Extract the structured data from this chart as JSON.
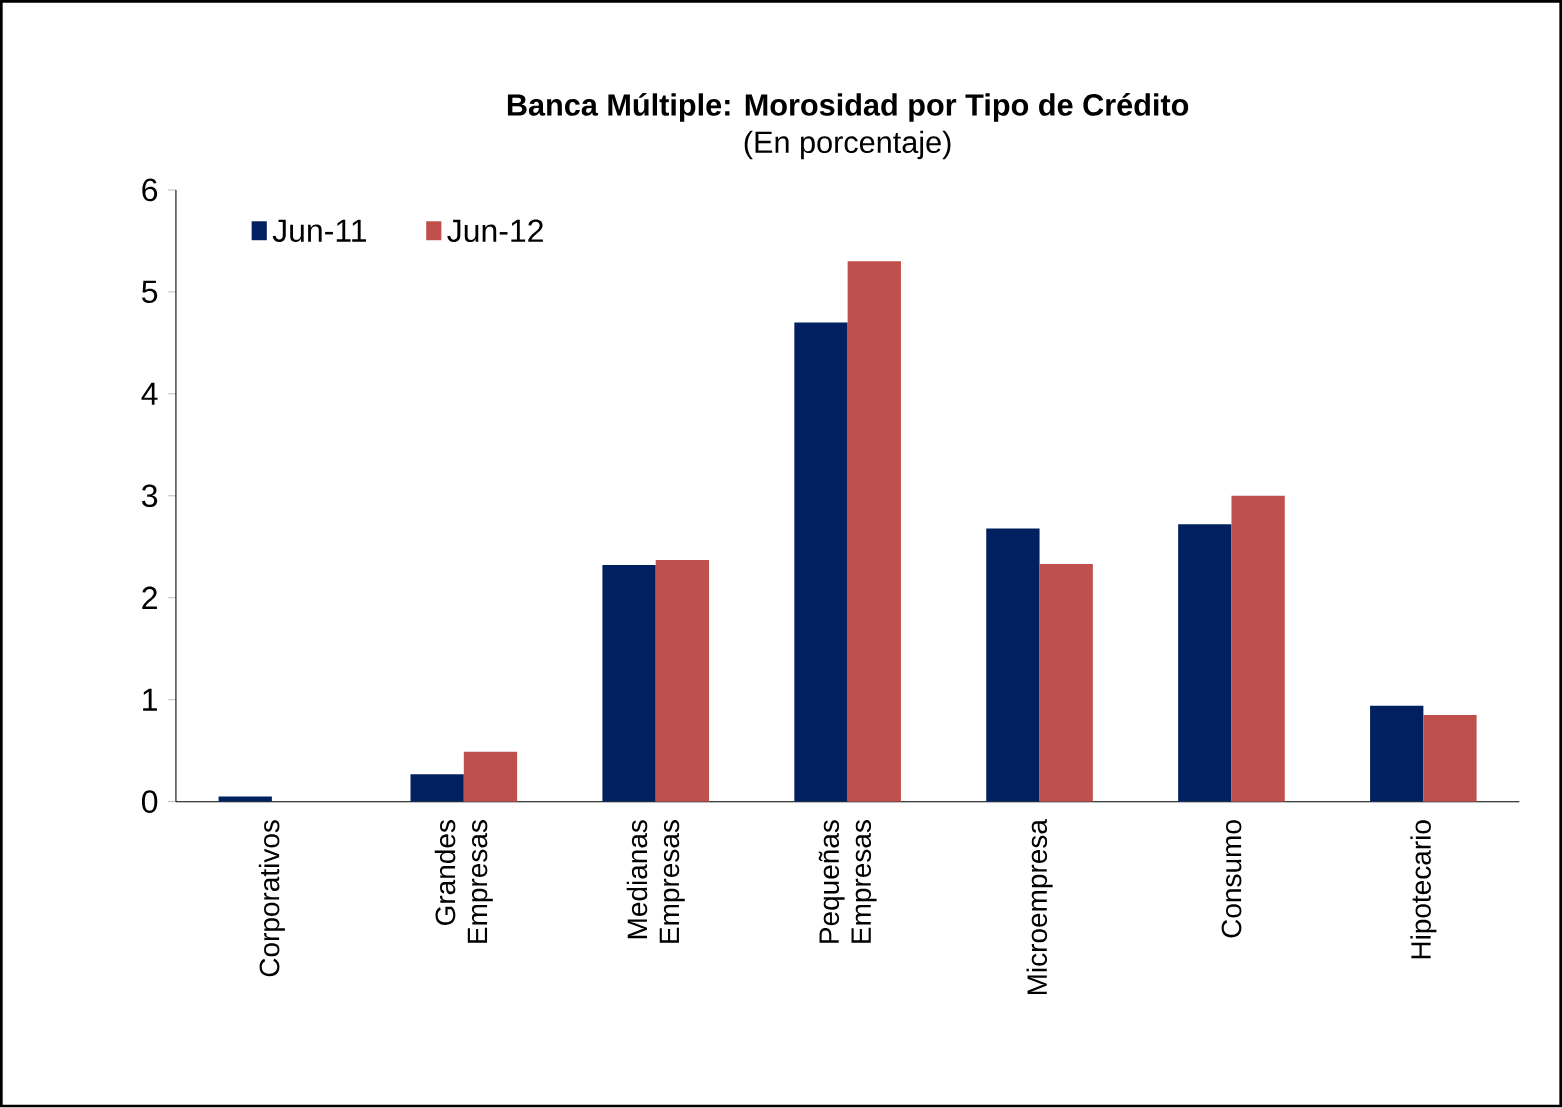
{
  "chart_data": {
    "type": "bar",
    "title": "Banca Múltiple: Morosidad por Tipo de Crédito",
    "subtitle": "(En porcentaje)",
    "categories": [
      "Corporativos",
      "Grandes Empresas",
      "Medianas Empresas",
      "Pequeñas Empresas",
      "Microempresa",
      "Consumo",
      "Hipotecario"
    ],
    "series": [
      {
        "name": "Jun-11",
        "color": "#002060",
        "values": [
          0.05,
          0.27,
          2.32,
          4.7,
          2.68,
          2.72,
          0.94
        ]
      },
      {
        "name": "Jun-12",
        "color": "#c0504d",
        "values": [
          null,
          0.49,
          2.37,
          5.3,
          2.33,
          3.0,
          0.85
        ]
      }
    ],
    "ylim": [
      0,
      6
    ],
    "yticks": [
      0,
      1,
      2,
      3,
      4,
      5,
      6
    ],
    "grid": false,
    "legend": "top left"
  }
}
